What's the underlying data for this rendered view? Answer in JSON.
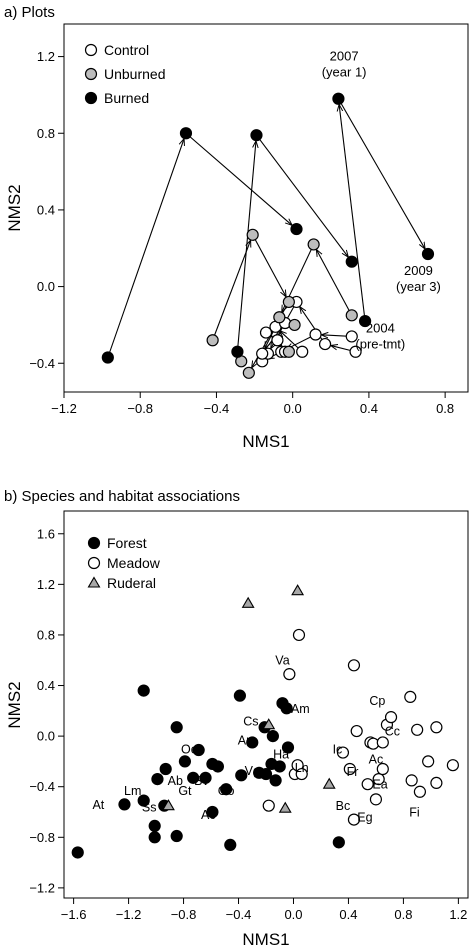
{
  "colors": {
    "control": "#ffffff",
    "unburned": "#bdbdbd",
    "burned": "#000000",
    "ruderal": "#a8a8a8",
    "stroke": "#000000"
  },
  "chart_data": [
    {
      "type": "scatter",
      "title": "a) Plots",
      "xlabel": "NMS1",
      "ylabel": "NMS2",
      "xlim": [
        -1.2,
        0.92
      ],
      "ylim": [
        -0.55,
        1.37
      ],
      "xticks": [
        -1.2,
        -0.8,
        -0.4,
        0.0,
        0.4,
        0.8
      ],
      "xtick_labels": [
        "−1.2",
        "−0.8",
        "−0.4",
        "0.0",
        "0.4",
        "0.8"
      ],
      "yticks": [
        -0.4,
        0.0,
        0.4,
        0.8,
        1.2
      ],
      "ytick_labels": [
        "−0.4",
        "0.0",
        "0.4",
        "0.8",
        "1.2"
      ],
      "legend": [
        {
          "label": "Control",
          "key": "control"
        },
        {
          "label": "Unburned",
          "key": "unburned"
        },
        {
          "label": "Burned",
          "key": "burned"
        }
      ],
      "annotations": [
        {
          "lines": [
            "2007",
            "(year 1)"
          ],
          "x": 0.27,
          "y": 1.18
        },
        {
          "lines": [
            "2009",
            "(year 3)"
          ],
          "x": 0.66,
          "y": 0.06
        },
        {
          "lines": [
            "2004",
            "(pre-tmt)"
          ],
          "x": 0.46,
          "y": -0.24
        }
      ],
      "series": [
        {
          "name": "Control",
          "key": "control",
          "trajectories": [
            {
              "x": [
                0.31,
                0.12,
                -0.06,
                -0.16
              ],
              "y": [
                -0.26,
                -0.25,
                -0.34,
                -0.39
              ]
            },
            {
              "x": [
                0.33,
                0.17,
                0.02,
                -0.13
              ],
              "y": [
                -0.34,
                -0.3,
                -0.08,
                -0.35
              ]
            },
            {
              "x": [
                0.05,
                -0.09,
                -0.16,
                -0.04
              ],
              "y": [
                -0.34,
                -0.21,
                -0.35,
                -0.19
              ]
            },
            {
              "x": [
                -0.14,
                -0.08,
                -0.04
              ],
              "y": [
                -0.24,
                -0.28,
                -0.34
              ]
            }
          ]
        },
        {
          "name": "Unburned",
          "key": "unburned",
          "trajectories": [
            {
              "x": [
                -0.42,
                -0.21,
                -0.02,
                -0.23
              ],
              "y": [
                -0.28,
                0.27,
                -0.08,
                -0.45
              ]
            },
            {
              "x": [
                0.31,
                0.11,
                -0.07,
                0.01
              ],
              "y": [
                -0.15,
                0.22,
                -0.16,
                -0.2
              ]
            },
            {
              "x": [
                -0.02
              ],
              "y": [
                -0.34
              ]
            },
            {
              "x": [
                -0.27
              ],
              "y": [
                -0.39
              ]
            }
          ]
        },
        {
          "name": "Burned",
          "key": "burned",
          "trajectories": [
            {
              "x": [
                -0.97,
                -0.56,
                0.02
              ],
              "y": [
                -0.37,
                0.8,
                0.3
              ]
            },
            {
              "x": [
                -0.29,
                -0.19,
                0.31
              ],
              "y": [
                -0.34,
                0.79,
                0.13
              ]
            },
            {
              "x": [
                0.38,
                0.24,
                0.71
              ],
              "y": [
                -0.18,
                0.98,
                0.17
              ]
            }
          ]
        }
      ]
    },
    {
      "type": "scatter",
      "title": "b) Species and habitat associations",
      "xlabel": "NMS1",
      "ylabel": "NMS2",
      "xlim": [
        -1.67,
        1.27
      ],
      "ylim": [
        -1.28,
        1.78
      ],
      "xticks": [
        -1.6,
        -1.2,
        -0.8,
        -0.4,
        0.0,
        0.4,
        0.8,
        1.2
      ],
      "xtick_labels": [
        "−1.6",
        "−1.2",
        "−0.8",
        "−0.4",
        "0.0",
        "0.4",
        "0.8",
        "1.2"
      ],
      "yticks": [
        -1.2,
        -0.8,
        -0.4,
        0.0,
        0.4,
        0.8,
        1.2,
        1.6
      ],
      "ytick_labels": [
        "−1.2",
        "−0.8",
        "−0.4",
        "0.0",
        "0.4",
        "0.8",
        "1.2",
        "1.6"
      ],
      "legend": [
        {
          "label": "Forest",
          "key": "forest"
        },
        {
          "label": "Meadow",
          "key": "meadow"
        },
        {
          "label": "Ruderal",
          "key": "ruderal"
        }
      ],
      "series": [
        {
          "name": "Forest",
          "key": "forest",
          "points": [
            {
              "x": -1.57,
              "y": -0.92
            },
            {
              "x": -1.23,
              "y": -0.54
            },
            {
              "x": -1.09,
              "y": 0.36
            },
            {
              "x": -1.09,
              "y": -0.51
            },
            {
              "x": -1.01,
              "y": -0.71
            },
            {
              "x": -1.01,
              "y": -0.8
            },
            {
              "x": -0.99,
              "y": -0.34
            },
            {
              "x": -0.94,
              "y": -0.55
            },
            {
              "x": -0.93,
              "y": -0.26
            },
            {
              "x": -0.85,
              "y": 0.07
            },
            {
              "x": -0.85,
              "y": -0.79
            },
            {
              "x": -0.79,
              "y": -0.2
            },
            {
              "x": -0.73,
              "y": -0.33
            },
            {
              "x": -0.69,
              "y": -0.11
            },
            {
              "x": -0.64,
              "y": -0.33
            },
            {
              "x": -0.59,
              "y": -0.22
            },
            {
              "x": -0.59,
              "y": -0.6
            },
            {
              "x": -0.55,
              "y": -0.24
            },
            {
              "x": -0.49,
              "y": -0.42
            },
            {
              "x": -0.46,
              "y": -0.86
            },
            {
              "x": -0.39,
              "y": 0.32
            },
            {
              "x": -0.38,
              "y": -0.31
            },
            {
              "x": -0.3,
              "y": -0.05
            },
            {
              "x": -0.25,
              "y": -0.29
            },
            {
              "x": -0.21,
              "y": 0.07
            },
            {
              "x": -0.2,
              "y": -0.3
            },
            {
              "x": -0.16,
              "y": -0.22
            },
            {
              "x": -0.15,
              "y": 0.0
            },
            {
              "x": -0.13,
              "y": -0.35
            },
            {
              "x": -0.1,
              "y": -0.24
            },
            {
              "x": -0.08,
              "y": 0.26
            },
            {
              "x": -0.05,
              "y": 0.22
            },
            {
              "x": -0.04,
              "y": -0.09
            },
            {
              "x": 0.33,
              "y": -0.84
            }
          ]
        },
        {
          "name": "Meadow",
          "key": "meadow",
          "points": [
            {
              "x": -0.18,
              "y": -0.55
            },
            {
              "x": -0.03,
              "y": 0.49
            },
            {
              "x": 0.01,
              "y": -0.3
            },
            {
              "x": 0.03,
              "y": -0.23
            },
            {
              "x": 0.04,
              "y": 0.8
            },
            {
              "x": 0.06,
              "y": -0.3
            },
            {
              "x": 0.36,
              "y": -0.13
            },
            {
              "x": 0.41,
              "y": -0.26
            },
            {
              "x": 0.44,
              "y": -0.66
            },
            {
              "x": 0.44,
              "y": 0.56
            },
            {
              "x": 0.46,
              "y": 0.04
            },
            {
              "x": 0.54,
              "y": -0.38
            },
            {
              "x": 0.56,
              "y": -0.05
            },
            {
              "x": 0.58,
              "y": -0.06
            },
            {
              "x": 0.6,
              "y": -0.5
            },
            {
              "x": 0.62,
              "y": -0.34
            },
            {
              "x": 0.65,
              "y": -0.05
            },
            {
              "x": 0.65,
              "y": -0.26
            },
            {
              "x": 0.68,
              "y": 0.09
            },
            {
              "x": 0.71,
              "y": 0.15
            },
            {
              "x": 0.85,
              "y": 0.31
            },
            {
              "x": 0.86,
              "y": -0.35
            },
            {
              "x": 0.9,
              "y": 0.05
            },
            {
              "x": 0.92,
              "y": -0.44
            },
            {
              "x": 0.98,
              "y": -0.2
            },
            {
              "x": 1.04,
              "y": 0.07
            },
            {
              "x": 1.04,
              "y": -0.37
            },
            {
              "x": 1.16,
              "y": -0.23
            }
          ]
        },
        {
          "name": "Ruderal",
          "key": "ruderal",
          "points": [
            {
              "x": -0.91,
              "y": -0.55
            },
            {
              "x": -0.33,
              "y": 1.05
            },
            {
              "x": -0.18,
              "y": 0.09
            },
            {
              "x": -0.06,
              "y": -0.57
            },
            {
              "x": 0.03,
              "y": 1.15
            },
            {
              "x": 0.26,
              "y": -0.38
            }
          ]
        }
      ],
      "species_labels": [
        {
          "text": "Va",
          "x": -0.08,
          "y": 0.6
        },
        {
          "text": "Am",
          "x": 0.05,
          "y": 0.22
        },
        {
          "text": "Cs",
          "x": -0.31,
          "y": 0.12
        },
        {
          "text": "An",
          "x": -0.35,
          "y": -0.03
        },
        {
          "text": "Ha",
          "x": -0.09,
          "y": -0.14
        },
        {
          "text": "Oc",
          "x": -0.76,
          "y": -0.1
        },
        {
          "text": "Vg",
          "x": -0.3,
          "y": -0.27
        },
        {
          "text": "Ln",
          "x": 0.06,
          "y": -0.25
        },
        {
          "text": "Go",
          "x": -0.49,
          "y": -0.43
        },
        {
          "text": "Ab",
          "x": -0.86,
          "y": -0.35
        },
        {
          "text": "Gt",
          "x": -0.79,
          "y": -0.43
        },
        {
          "text": "Bv",
          "x": -0.67,
          "y": -0.35
        },
        {
          "text": "Lm",
          "x": -1.17,
          "y": -0.43
        },
        {
          "text": "Ss",
          "x": -1.05,
          "y": -0.56
        },
        {
          "text": "At",
          "x": -1.42,
          "y": -0.54
        },
        {
          "text": "Ac",
          "x": -0.62,
          "y": -0.62
        },
        {
          "text": "Cp",
          "x": 0.61,
          "y": 0.28
        },
        {
          "text": "Cc",
          "x": 0.72,
          "y": 0.04
        },
        {
          "text": "Ic",
          "x": 0.32,
          "y": -0.1
        },
        {
          "text": "Ac",
          "x": 0.6,
          "y": -0.18
        },
        {
          "text": "Fr",
          "x": 0.43,
          "y": -0.28
        },
        {
          "text": "Ea",
          "x": 0.63,
          "y": -0.38
        },
        {
          "text": "Bc",
          "x": 0.36,
          "y": -0.55
        },
        {
          "text": "Eg",
          "x": 0.52,
          "y": -0.64
        },
        {
          "text": "Fi",
          "x": 0.88,
          "y": -0.6
        }
      ]
    }
  ]
}
